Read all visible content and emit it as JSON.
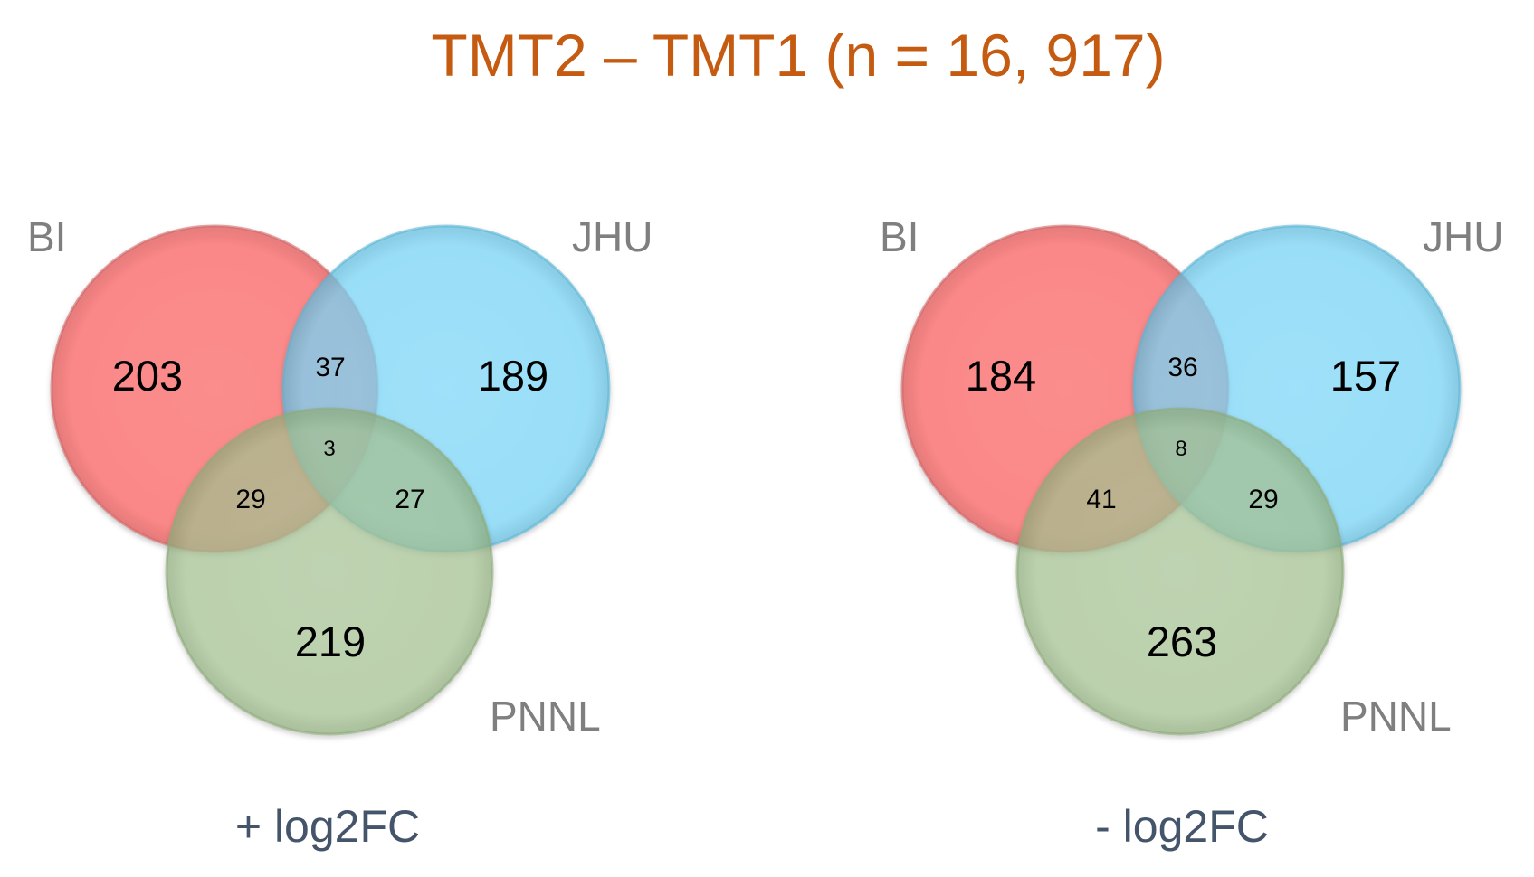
{
  "title": "TMT2 – TMT1 (n = 16, 917)",
  "colors": {
    "title": "#C55A11",
    "set_label": "#7F7F7F",
    "caption": "#44546A",
    "BI": "#FF7C7C",
    "JHU": "#7FDBFF",
    "PNNL": "#A9C896"
  },
  "venns": [
    {
      "caption": "+ log2FC",
      "labels": {
        "a": "BI",
        "b": "JHU",
        "c": "PNNL"
      },
      "regions": {
        "a_only": "203",
        "b_only": "189",
        "c_only": "219",
        "ab": "37",
        "ac": "29",
        "bc": "27",
        "abc": "3"
      }
    },
    {
      "caption": "- log2FC",
      "labels": {
        "a": "BI",
        "b": "JHU",
        "c": "PNNL"
      },
      "regions": {
        "a_only": "184",
        "b_only": "157",
        "c_only": "263",
        "ab": "36",
        "ac": "41",
        "bc": "29",
        "abc": "8"
      }
    }
  ]
}
